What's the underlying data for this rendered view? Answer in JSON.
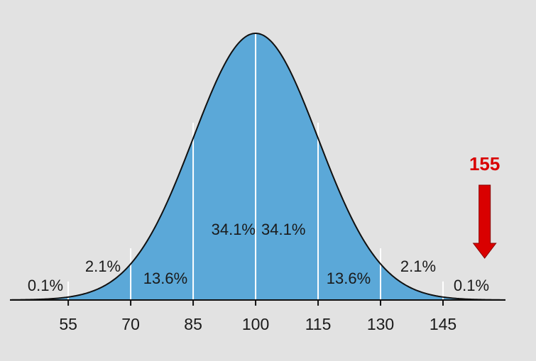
{
  "chart_data": {
    "type": "area",
    "title": "",
    "xlabel": "",
    "ylabel": "",
    "distribution": {
      "mean": 100,
      "sd": 15
    },
    "xlim": [
      41,
      160
    ],
    "x_ticks": [
      55,
      70,
      85,
      100,
      115,
      130,
      145
    ],
    "x_tick_labels": [
      "55",
      "70",
      "85",
      "100",
      "115",
      "130",
      "145"
    ],
    "bands": [
      {
        "from": 41,
        "to": 55,
        "label": "0.1%"
      },
      {
        "from": 55,
        "to": 70,
        "label": "2.1%"
      },
      {
        "from": 70,
        "to": 85,
        "label": "13.6%"
      },
      {
        "from": 85,
        "to": 100,
        "label": "34.1%"
      },
      {
        "from": 100,
        "to": 115,
        "label": "34.1%"
      },
      {
        "from": 115,
        "to": 130,
        "label": "13.6%"
      },
      {
        "from": 130,
        "to": 145,
        "label": "2.1%"
      },
      {
        "from": 145,
        "to": 160,
        "label": "0.1%"
      }
    ],
    "marker": {
      "x": 155,
      "label": "155",
      "color": "#d90000"
    },
    "colors": {
      "fill": "#5ba8d8",
      "outline": "#111111",
      "dividers": "#ffffff",
      "axis": "#111111",
      "background": "#e2e2e2"
    }
  }
}
